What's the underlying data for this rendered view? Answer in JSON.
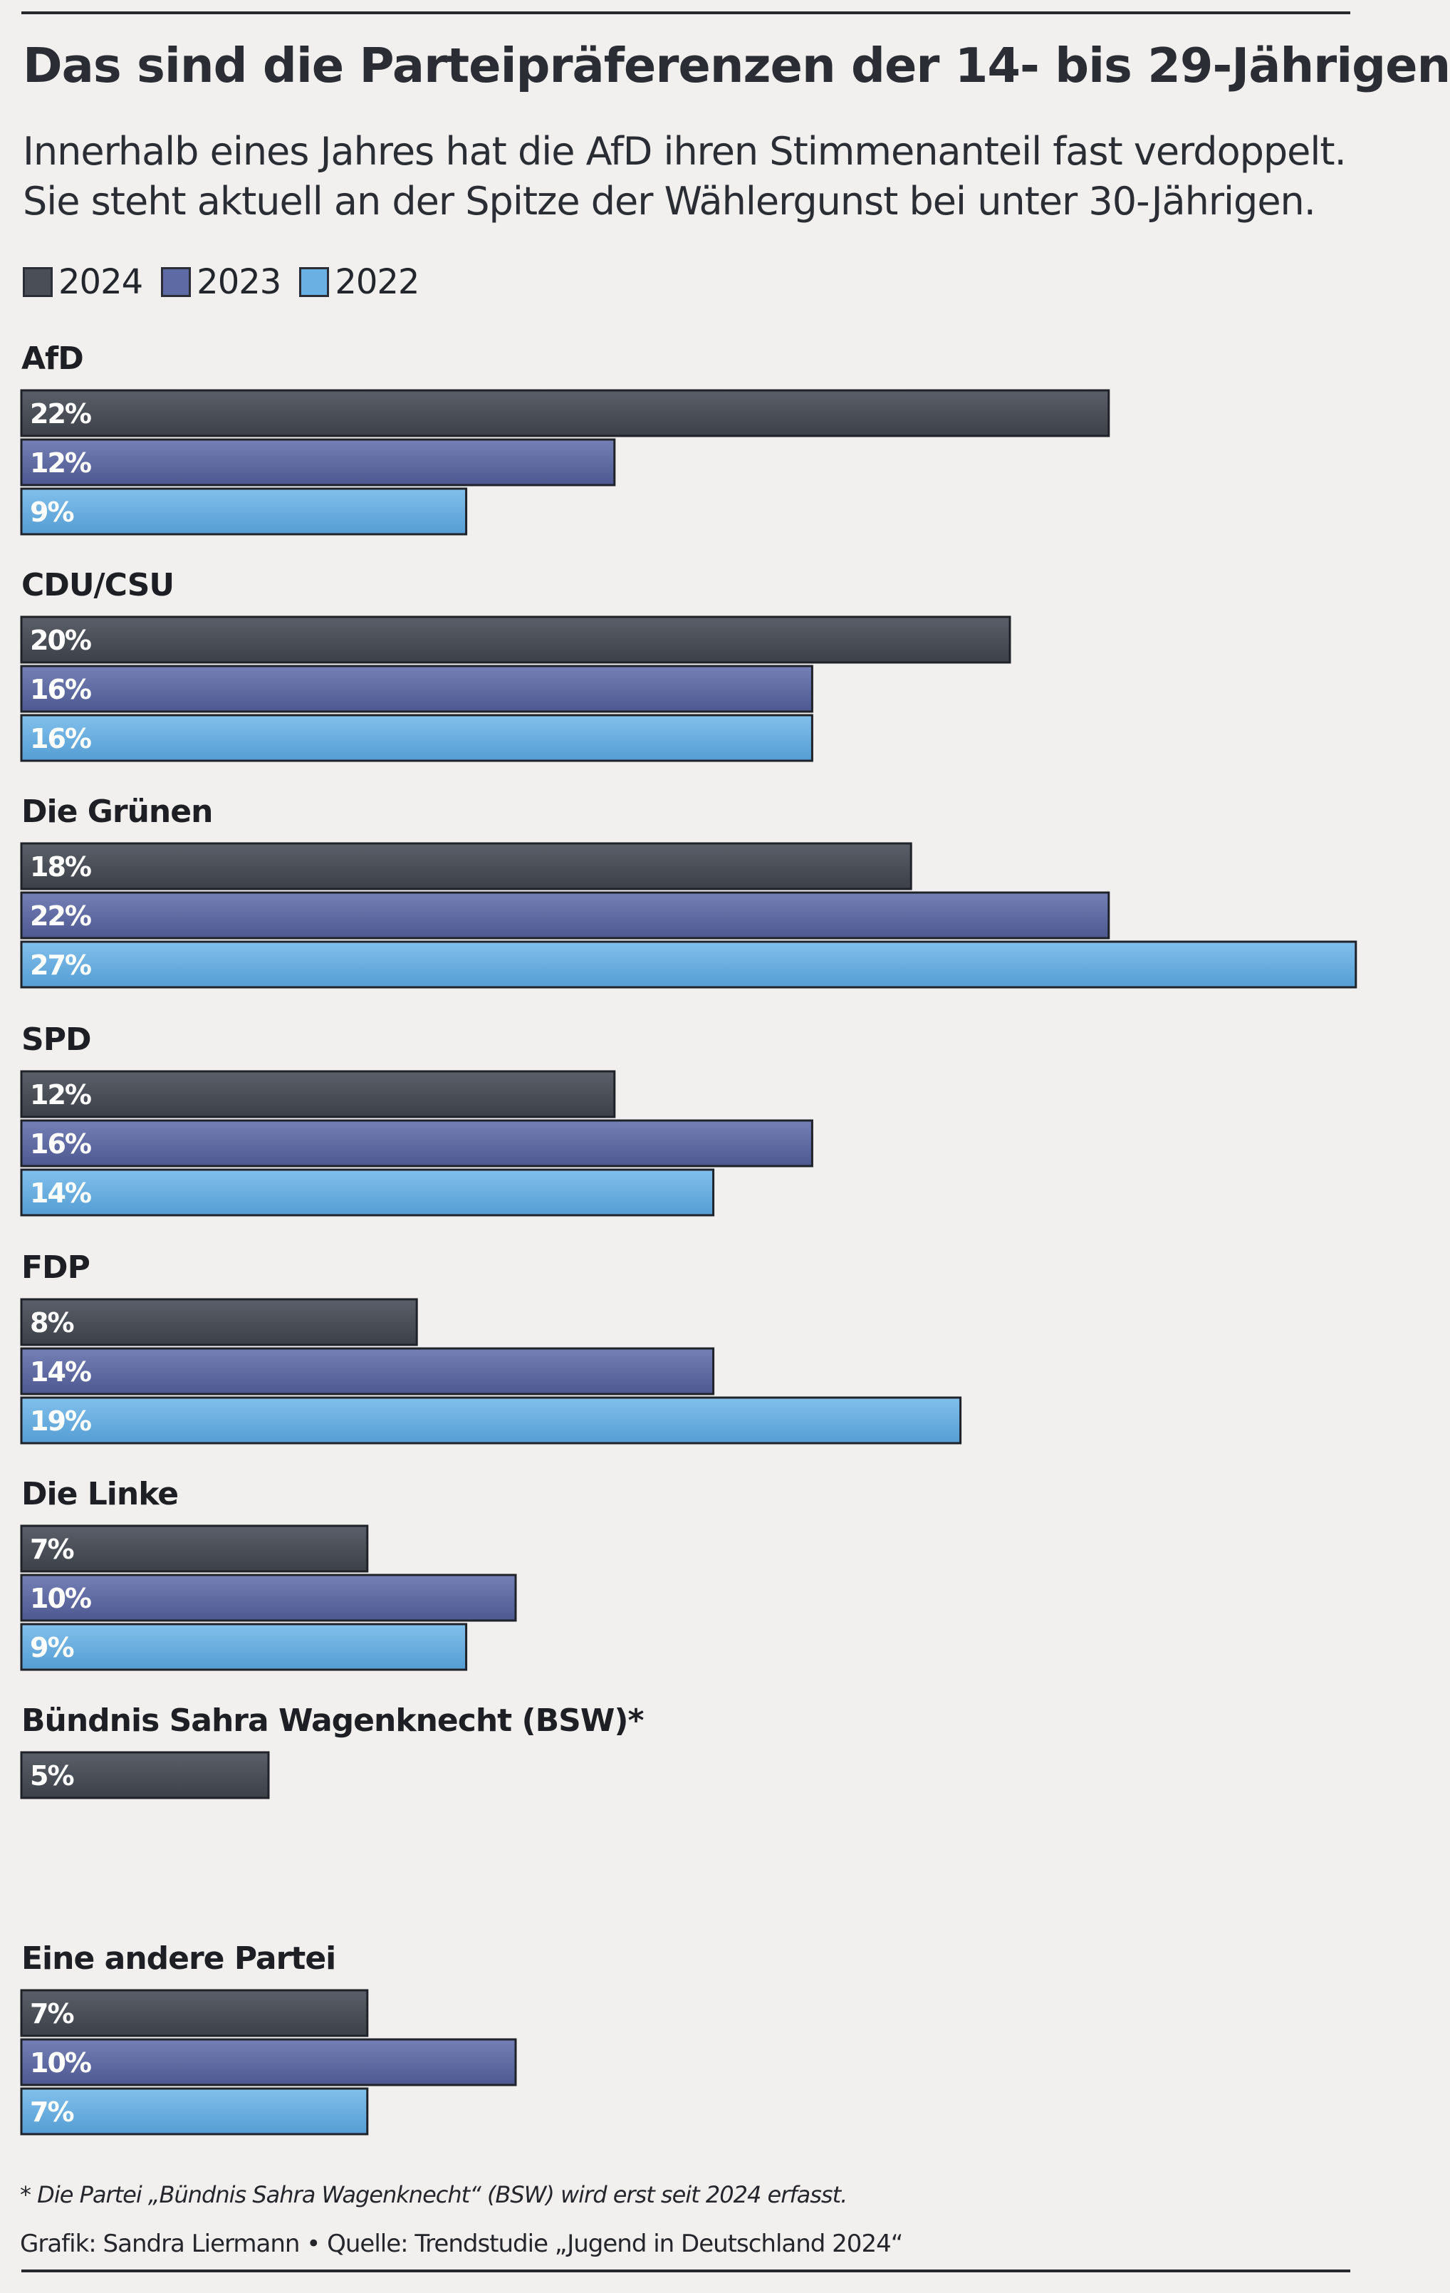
{
  "title": "Das sind die Parteipräferenzen der 14- bis 29-Jährigen",
  "subtitle_lines": [
    "Innerhalb eines Jahres hat die AfD ihren Stimmenanteil fast verdoppelt.",
    "Sie steht aktuell an der Spitze der Wählergunst bei unter 30-Jährigen."
  ],
  "footnote": "* Die Partei „Bündnis Sahra Wagenknecht“ (BSW) wird erst seit 2024 erfasst.",
  "credit": "Grafik: Sandra Liermann • Quelle: Trendstudie „Jugend in Deutschland 2024“",
  "chart_data": {
    "type": "bar",
    "orientation": "horizontal",
    "unit": "%",
    "categories": [
      "AfD",
      "CDU/CSU",
      "Die Grünen",
      "SPD",
      "FDP",
      "Die Linke",
      "Bündnis Sahra Wagenknecht (BSW)*",
      "Eine andere Partei"
    ],
    "series": [
      {
        "name": "2024",
        "color": "#4a4e57",
        "values": [
          22,
          20,
          18,
          12,
          8,
          7,
          5,
          7
        ]
      },
      {
        "name": "2023",
        "color": "#5e6aa3",
        "values": [
          12,
          16,
          22,
          16,
          14,
          10,
          null,
          10
        ]
      },
      {
        "name": "2022",
        "color": "#6ab0e2",
        "values": [
          9,
          16,
          27,
          14,
          19,
          9,
          null,
          7
        ]
      }
    ],
    "legend_position": "top-left",
    "grid": false,
    "xlim": [
      0,
      27
    ]
  }
}
